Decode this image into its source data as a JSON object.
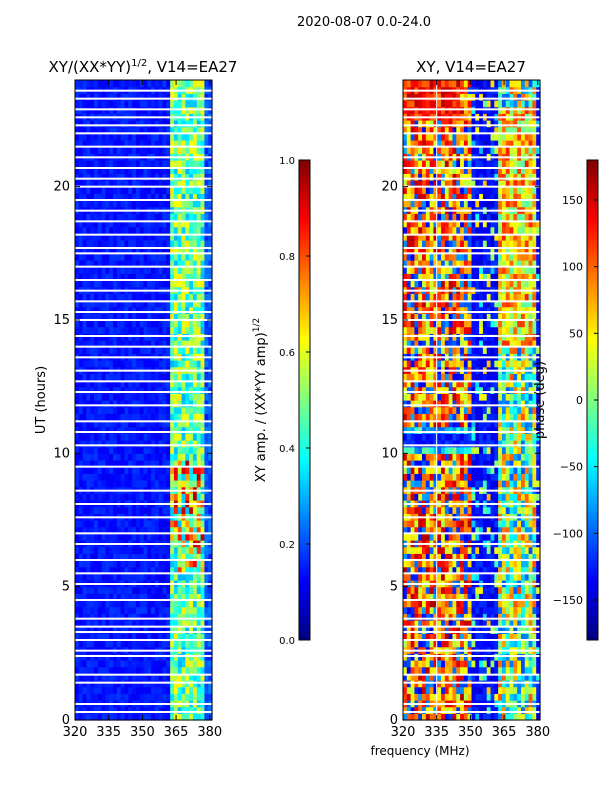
{
  "suptitle": "2020-08-07 0.0-24.0",
  "chart_data": [
    {
      "type": "heatmap",
      "title_main": "XY/(XX*YY)",
      "title_sup": "1/2",
      "title_rest": ", V14=EA27",
      "xlabel": "",
      "ylabel": "UT (hours)",
      "xlim": [
        320,
        381
      ],
      "ylim": [
        0,
        24
      ],
      "xticks": [
        320,
        335,
        350,
        365,
        380
      ],
      "yticks": [
        0,
        5,
        10,
        15,
        20
      ],
      "colorbar": {
        "label_main": "XY amp. / (XX*YY amp)",
        "label_sup": "1/2",
        "range": [
          0.0,
          1.0
        ],
        "ticks": [
          "0.0",
          "0.2",
          "0.4",
          "0.6",
          "0.8",
          "1.0"
        ],
        "tick_values": [
          0.0,
          0.2,
          0.4,
          0.6,
          0.8,
          1.0
        ]
      }
    },
    {
      "type": "heatmap",
      "title": "XY, V14=EA27",
      "xlabel": "frequency (MHz)",
      "ylabel": "",
      "xlim": [
        320,
        381
      ],
      "ylim": [
        0,
        24
      ],
      "xticks": [
        320,
        335,
        350,
        365,
        380
      ],
      "yticks": [
        0,
        5,
        10,
        15,
        20
      ],
      "colorbar": {
        "label": "phase (deg)",
        "range": [
          -180,
          180
        ],
        "ticks": [
          "−150",
          "−100",
          "−50",
          "0",
          "50",
          "100",
          "150"
        ],
        "tick_values": [
          -150,
          -100,
          -50,
          0,
          50,
          100,
          150
        ]
      }
    }
  ]
}
